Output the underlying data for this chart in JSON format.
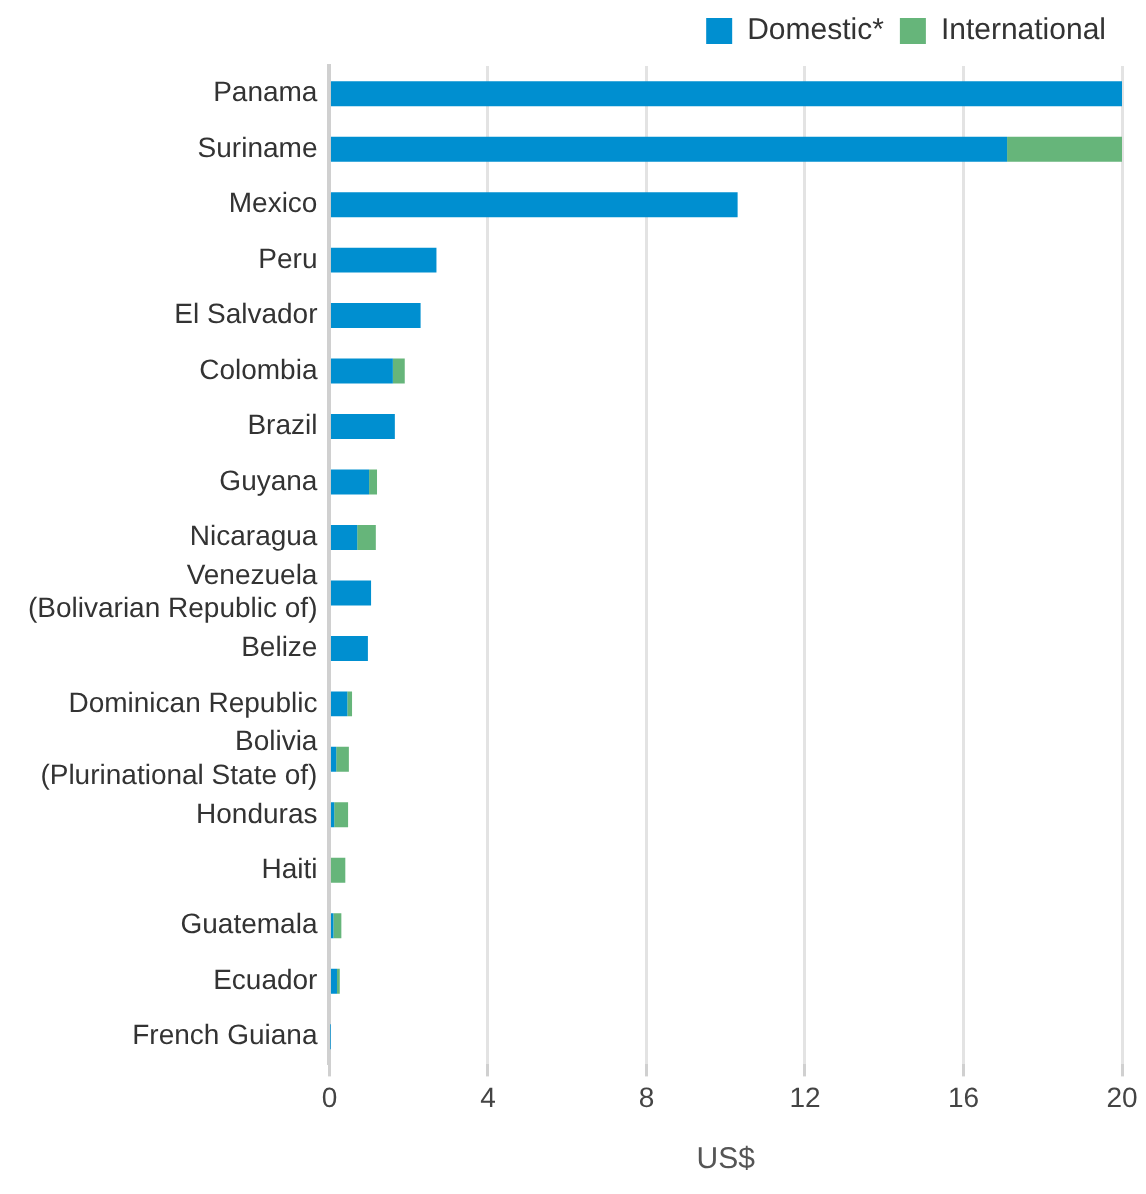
{
  "chart_data": {
    "type": "bar",
    "orientation": "horizontal",
    "stacked": true,
    "xlabel": "US$",
    "categories": [
      "Panama",
      "Suriname",
      "Mexico",
      "Peru",
      "El Salvador",
      "Colombia",
      "Brazil",
      "Guyana",
      "Nicaragua",
      "Venezuela\n(Bolivarian Republic of)",
      "Belize",
      "Dominican Republic",
      "Bolivia\n(Plurinational State of)",
      "Honduras",
      "Haiti",
      "Guatemala",
      "Ecuador",
      "French Guiana"
    ],
    "series": [
      {
        "name": "Domestic*",
        "color": "#008fd0",
        "values": [
          20,
          17.1,
          10.3,
          2.7,
          2.3,
          1.6,
          1.65,
          1.0,
          0.7,
          1.05,
          0.97,
          0.45,
          0.17,
          0.12,
          0,
          0.1,
          0.19,
          0.02
        ]
      },
      {
        "name": "International",
        "color": "#66b57a",
        "values": [
          0,
          2.9,
          0,
          0,
          0,
          0.3,
          0,
          0.2,
          0.47,
          0,
          0,
          0.12,
          0.32,
          0.35,
          0.4,
          0.2,
          0.07,
          0
        ]
      }
    ],
    "xlim": [
      0,
      20
    ],
    "xticks": [
      0,
      4,
      8,
      12,
      16,
      20
    ],
    "grid": "x",
    "legend": "top right"
  }
}
